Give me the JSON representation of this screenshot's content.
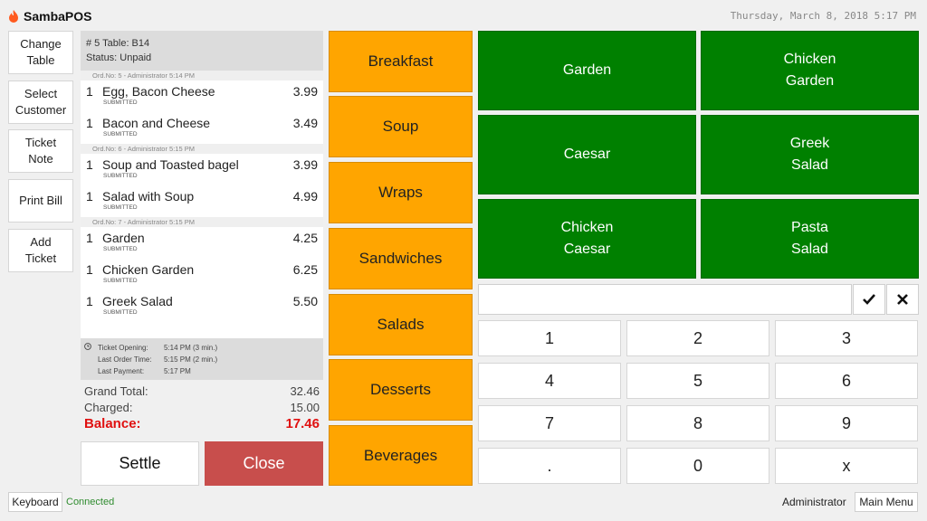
{
  "app": {
    "title": "SambaPOS",
    "datetime": "Thursday, March 8, 2018 5:17 PM",
    "accent_color": "#ff5a1f"
  },
  "actions": [
    "Change\nTable",
    "Select\nCustomer",
    "Ticket\nNote",
    "Print Bill",
    "Add\nTicket"
  ],
  "ticket": {
    "header_line1": "# 5 Table: B14",
    "header_line2": "Status: Unpaid",
    "orders": [
      {
        "label": "Ord.No: 5 - Administrator 5:14 PM",
        "items": [
          {
            "qty": "1",
            "name": "Egg, Bacon Cheese",
            "price": "3.99",
            "status": "SUBMITTED"
          },
          {
            "qty": "1",
            "name": "Bacon and Cheese",
            "price": "3.49",
            "status": "SUBMITTED"
          }
        ]
      },
      {
        "label": "Ord.No: 6 - Administrator 5:15 PM",
        "items": [
          {
            "qty": "1",
            "name": "Soup and Toasted bagel",
            "price": "3.99",
            "status": "SUBMITTED"
          },
          {
            "qty": "1",
            "name": "Salad with Soup",
            "price": "4.99",
            "status": "SUBMITTED"
          }
        ]
      },
      {
        "label": "Ord.No: 7 - Administrator 5:15 PM",
        "items": [
          {
            "qty": "1",
            "name": "Garden",
            "price": "4.25",
            "status": "SUBMITTED"
          },
          {
            "qty": "1",
            "name": "Chicken Garden",
            "price": "6.25",
            "status": "SUBMITTED"
          },
          {
            "qty": "1",
            "name": "Greek Salad",
            "price": "5.50",
            "status": "SUBMITTED"
          }
        ]
      }
    ],
    "info": [
      {
        "label": "Ticket Opening:",
        "value": "5:14 PM (3 min.)"
      },
      {
        "label": "Last Order Time:",
        "value": "5:15 PM (2 min.)"
      },
      {
        "label": "Last Payment:",
        "value": "5:17 PM"
      }
    ]
  },
  "totals": {
    "grand_total_label": "Grand Total:",
    "grand_total": "32.46",
    "charged_label": "Charged:",
    "charged": "15.00",
    "balance_label": "Balance:",
    "balance": "17.46",
    "balance_color": "#e01010"
  },
  "buttons": {
    "settle": "Settle",
    "close": "Close",
    "close_color": "#c84e4c"
  },
  "categories": [
    "Breakfast",
    "Soup",
    "Wraps",
    "Sandwiches",
    "Salads",
    "Desserts",
    "Beverages"
  ],
  "category_color": "#ffa500",
  "menu_items": [
    "Garden",
    "Chicken\nGarden",
    "Caesar",
    "Greek\nSalad",
    "Chicken\nCaesar",
    "Pasta\nSalad"
  ],
  "menu_color": "#008000",
  "numpad": {
    "keys": [
      "1",
      "2",
      "3",
      "4",
      "5",
      "6",
      "7",
      "8",
      "9",
      ".",
      "0",
      "x"
    ],
    "input_value": ""
  },
  "footer": {
    "keyboard": "Keyboard",
    "status": "Connected",
    "user": "Administrator",
    "main_menu": "Main Menu"
  }
}
